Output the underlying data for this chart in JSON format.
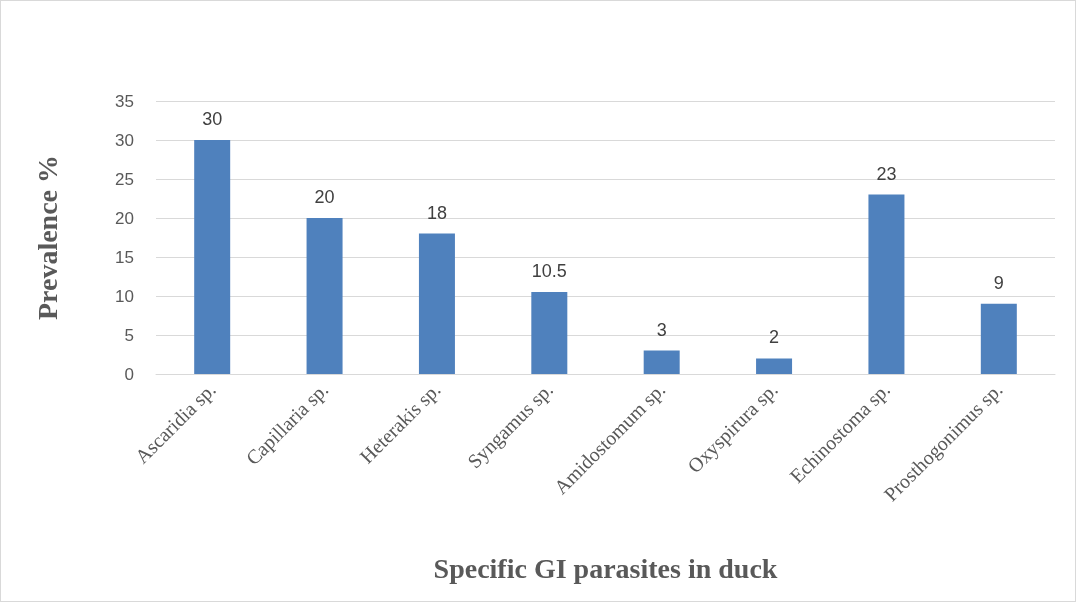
{
  "chart_data": {
    "type": "bar",
    "xlabel": "Specific GI parasites in duck",
    "ylabel": "Prevalence %",
    "categories": [
      "Ascaridia sp.",
      "Capillaria sp.",
      "Heterakis sp.",
      "Syngamus sp.",
      "Amidostomum sp.",
      "Oxyspirura sp.",
      "Echinostoma sp.",
      "Prosthogonimus sp."
    ],
    "values": [
      30,
      20,
      18,
      10.5,
      3,
      2,
      23,
      9
    ],
    "color": "#4f81bd",
    "ylim": [
      0,
      35
    ],
    "yticks": [
      0,
      5,
      10,
      15,
      20,
      25,
      30,
      35
    ],
    "grid": "y",
    "data_labels": true
  }
}
